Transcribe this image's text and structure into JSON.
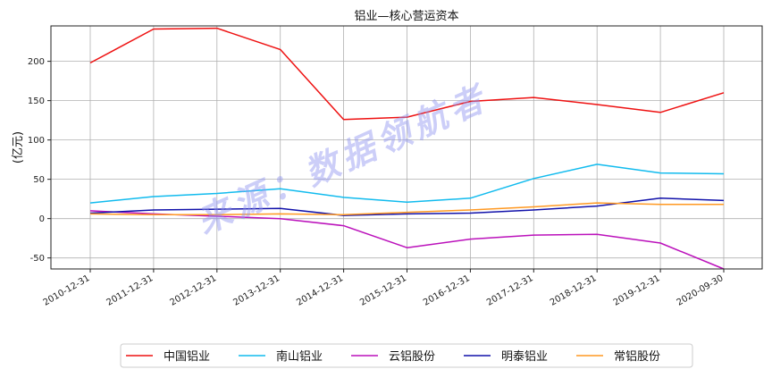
{
  "chart_data": {
    "type": "line",
    "title": "铝业—核心营运资本",
    "xlabel": "",
    "ylabel": "(亿元)",
    "categories": [
      "2010-12-31",
      "2011-12-31",
      "2012-12-31",
      "2013-12-31",
      "2014-12-31",
      "2015-12-31",
      "2016-12-31",
      "2017-12-31",
      "2018-12-31",
      "2019-12-31",
      "2020-09-30"
    ],
    "ylim": [
      -64,
      245
    ],
    "yticks": [
      -50,
      0,
      50,
      100,
      150,
      200
    ],
    "grid": true,
    "legend_position": "bottom",
    "series": [
      {
        "name": "中国铝业",
        "color": "#ee1111",
        "values": [
          198,
          241,
          242,
          215,
          126,
          129,
          149,
          154,
          145,
          135,
          160
        ]
      },
      {
        "name": "南山铝业",
        "color": "#11bbee",
        "values": [
          20,
          28,
          32,
          38,
          27,
          21,
          26,
          51,
          69,
          58,
          57
        ]
      },
      {
        "name": "云铝股份",
        "color": "#bb11bb",
        "values": [
          10,
          6,
          3,
          0,
          -9,
          -37,
          -26,
          -21,
          -20,
          -31,
          -64
        ]
      },
      {
        "name": "明泰铝业",
        "color": "#1111aa",
        "values": [
          7,
          11,
          12,
          13,
          4,
          6,
          7,
          11,
          16,
          26,
          23
        ]
      },
      {
        "name": "常铝股份",
        "color": "#ff9922",
        "values": [
          6,
          5,
          5,
          6,
          5,
          8,
          11,
          15,
          20,
          18,
          18
        ]
      }
    ]
  },
  "watermark": "来源：数据领航者"
}
